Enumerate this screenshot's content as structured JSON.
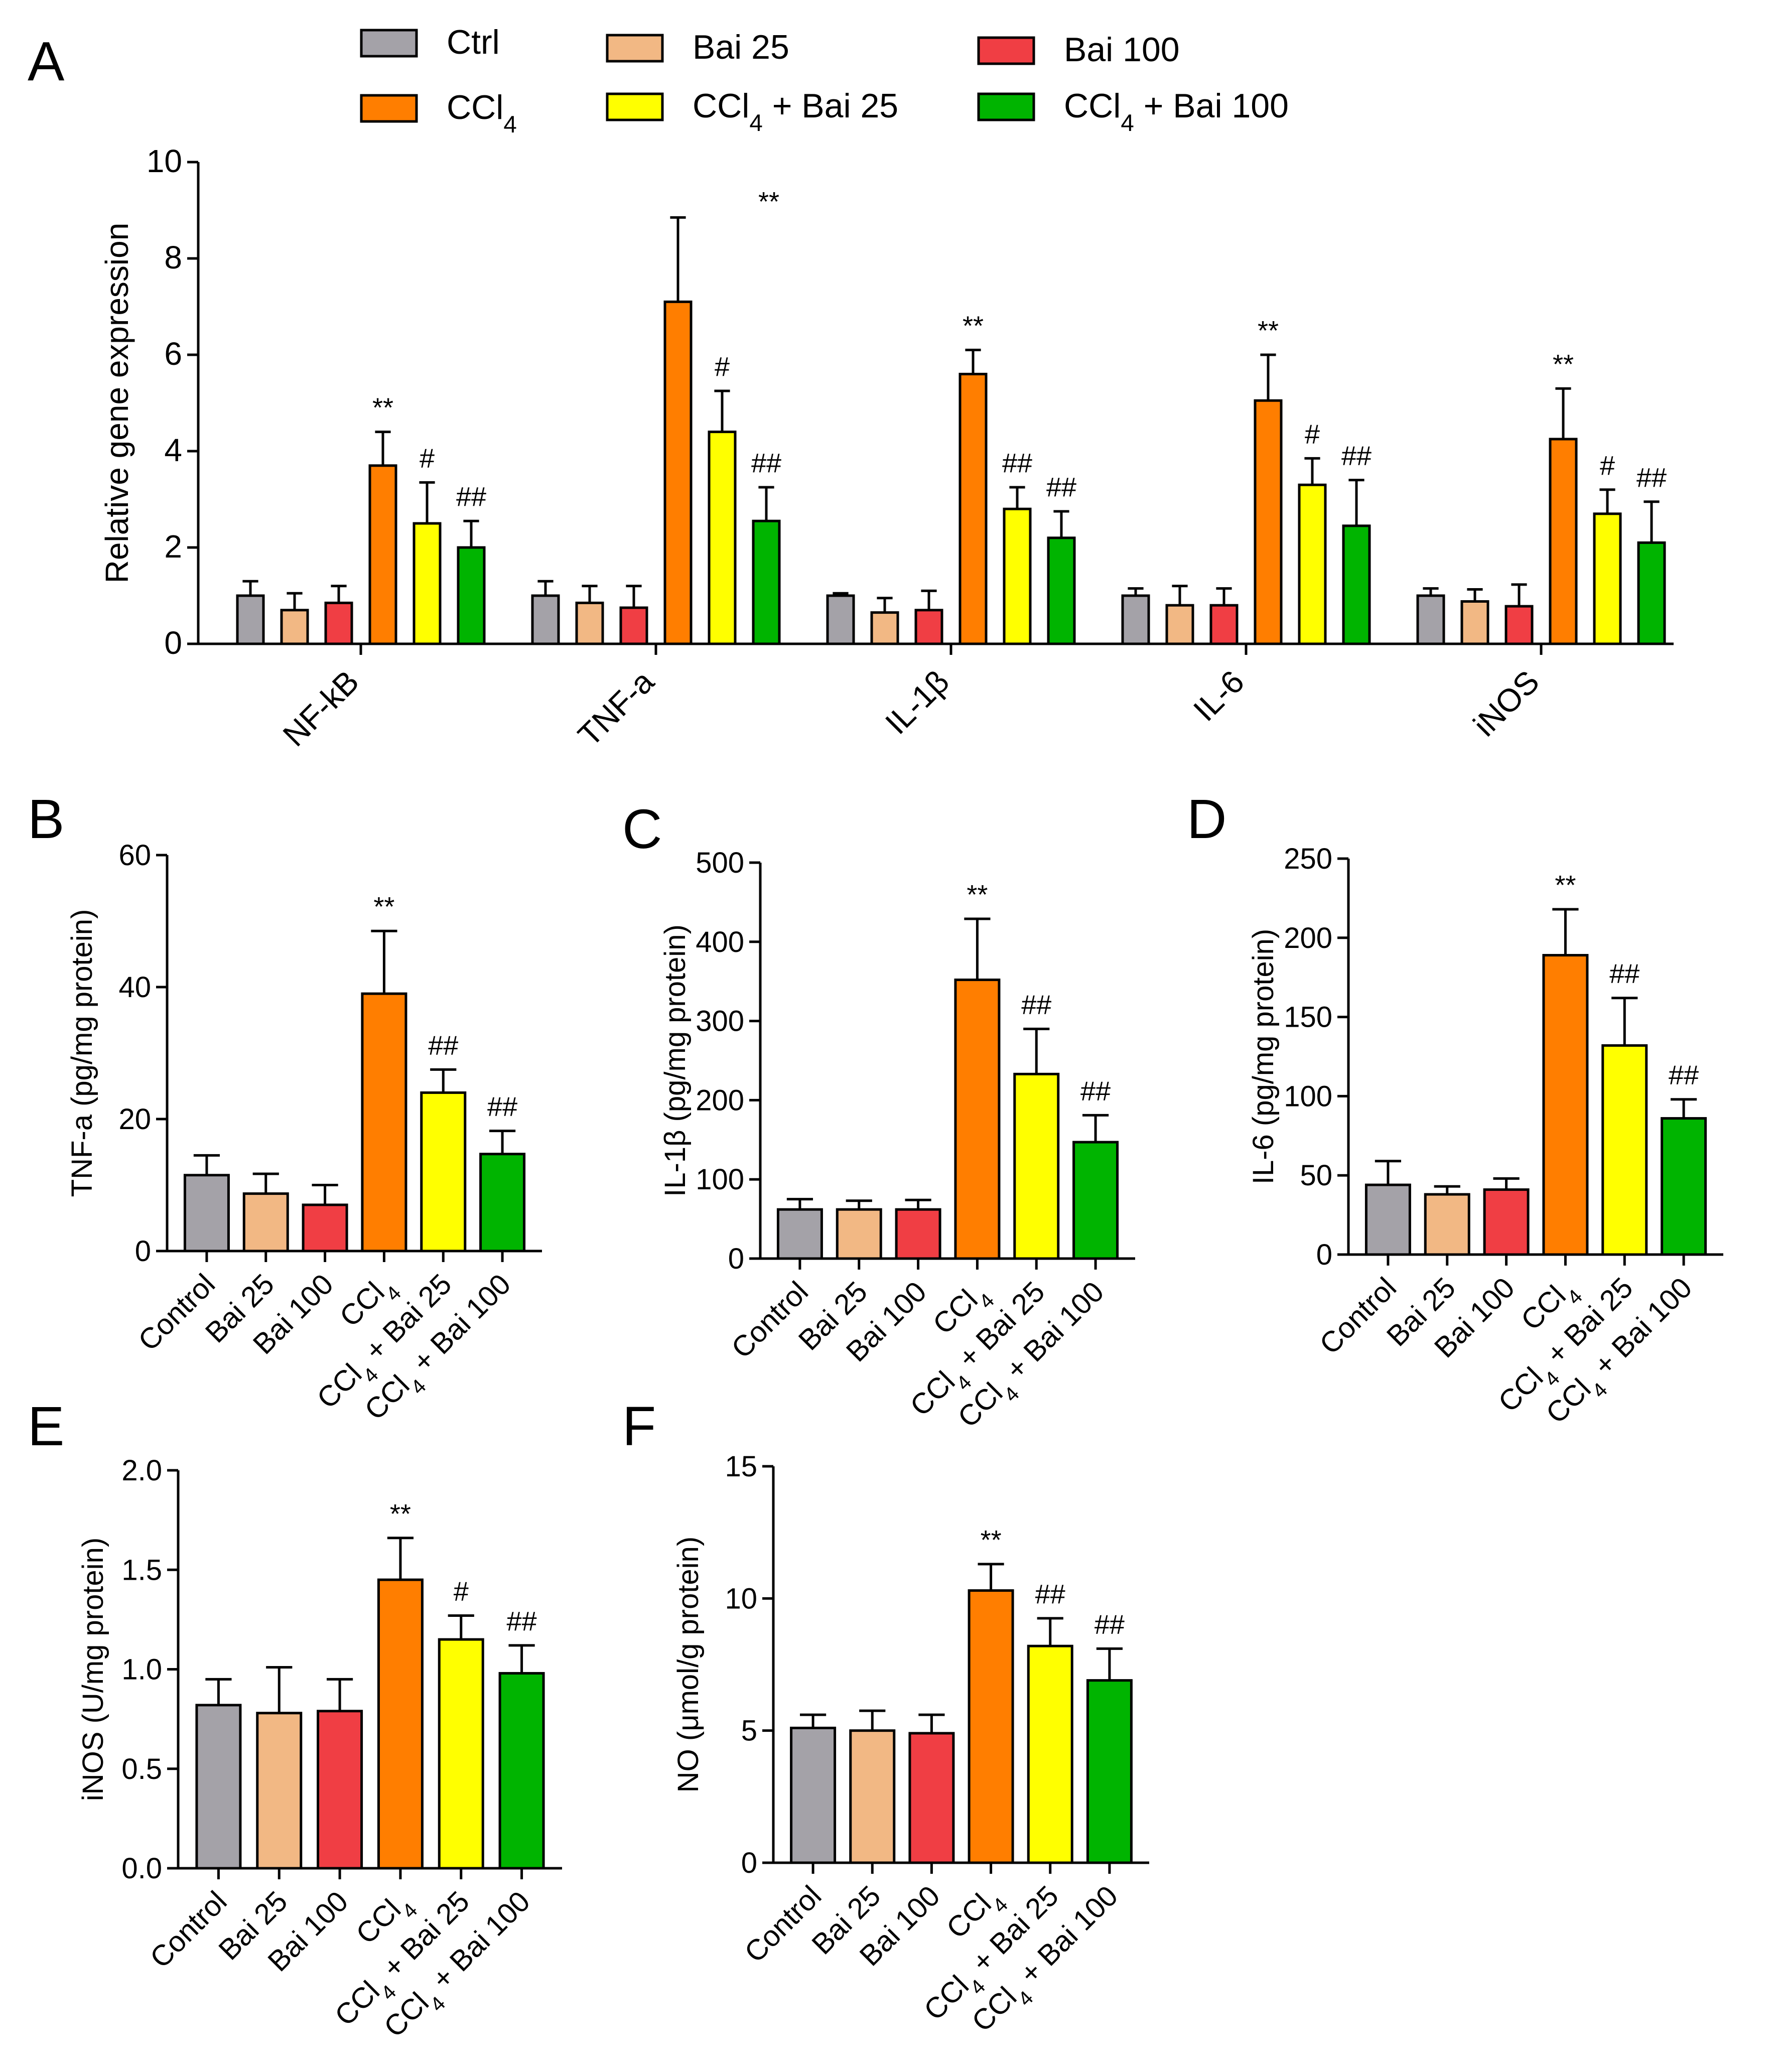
{
  "legend": [
    {
      "key": "ctrl",
      "label": "Ctrl",
      "sub": "",
      "tail": "",
      "color": "#A4A2A8"
    },
    {
      "key": "bai25",
      "label": "Bai 25",
      "sub": "",
      "tail": "",
      "color": "#F2B884"
    },
    {
      "key": "bai100",
      "label": "Bai 100",
      "sub": "",
      "tail": "",
      "color": "#F03E44"
    },
    {
      "key": "ccl4",
      "label": "CCl",
      "sub": "4",
      "tail": "",
      "color": "#FF7E00"
    },
    {
      "key": "ccl4bai25",
      "label": "CCl",
      "sub": "4",
      "tail": " + Bai 25",
      "color": "#FFFF00"
    },
    {
      "key": "ccl4bai100",
      "label": "CCl",
      "sub": "4",
      "tail": " + Bai 100",
      "color": "#00B400"
    }
  ],
  "chart_data": [
    {
      "id": "A",
      "panel_label": "A",
      "type": "bar",
      "ylabel": "Relative gene expression",
      "ylim": [
        0,
        10
      ],
      "yticks": [
        0,
        2,
        4,
        6,
        8,
        10
      ],
      "tick_decimals": 0,
      "categories": [
        "NF-kB",
        "TNF-a",
        "IL-1β",
        "IL-6",
        "iNOS"
      ],
      "series": [
        {
          "name": "Ctrl",
          "color": "#A4A2A8",
          "values": [
            1.0,
            1.0,
            1.0,
            1.0,
            1.0
          ],
          "errors": [
            0.3,
            0.3,
            0.05,
            0.15,
            0.15
          ],
          "sig": [
            "",
            "",
            "",
            "",
            ""
          ]
        },
        {
          "name": "Bai 25",
          "color": "#F2B884",
          "values": [
            0.7,
            0.85,
            0.65,
            0.8,
            0.88
          ],
          "errors": [
            0.35,
            0.35,
            0.3,
            0.4,
            0.25
          ],
          "sig": [
            "",
            "",
            "",
            "",
            ""
          ]
        },
        {
          "name": "Bai 100",
          "color": "#F03E44",
          "values": [
            0.85,
            0.75,
            0.7,
            0.8,
            0.78
          ],
          "errors": [
            0.35,
            0.45,
            0.4,
            0.35,
            0.45
          ],
          "sig": [
            "",
            "",
            "",
            "",
            ""
          ]
        },
        {
          "name": "CCl4",
          "color": "#FF7E00",
          "values": [
            3.7,
            7.1,
            5.6,
            5.05,
            4.25
          ],
          "errors": [
            0.7,
            1.75,
            0.5,
            0.95,
            1.05
          ],
          "sig": [
            "**",
            "",
            "**",
            "**",
            "**"
          ]
        },
        {
          "name": "CCl4 + Bai 25",
          "color": "#FFFF00",
          "values": [
            2.5,
            4.4,
            2.8,
            3.3,
            2.7
          ],
          "errors": [
            0.85,
            0.85,
            0.45,
            0.55,
            0.5
          ],
          "sig": [
            "#",
            "#",
            "##",
            "#",
            "#"
          ]
        },
        {
          "name": "CCl4 + Bai 100",
          "color": "#00B400",
          "values": [
            2.0,
            2.55,
            2.2,
            2.45,
            2.1
          ],
          "errors": [
            0.55,
            0.7,
            0.55,
            0.95,
            0.85
          ],
          "sig": [
            "##",
            "##",
            "##",
            "##",
            "##"
          ]
        }
      ],
      "annotations": [
        {
          "text": "**",
          "near_category": "TNF-a"
        }
      ]
    },
    {
      "id": "B",
      "panel_label": "B",
      "type": "bar",
      "ylabel": "TNF-a (pg/mg protein)",
      "ylim": [
        0,
        60
      ],
      "yticks": [
        0,
        20,
        40,
        60
      ],
      "tick_decimals": 0,
      "categories": [
        "Control",
        "Bai 25",
        "Bai 100",
        "CCl4",
        "CCl4 + Bai 25",
        "CCl4 + Bai 100"
      ],
      "values": [
        11.5,
        8.7,
        7.0,
        39.0,
        24.0,
        14.7
      ],
      "errors": [
        3.0,
        3.0,
        3.0,
        9.5,
        3.5,
        3.5
      ],
      "sig": [
        "",
        "",
        "",
        "**",
        "##",
        "##"
      ]
    },
    {
      "id": "C",
      "panel_label": "C",
      "type": "bar",
      "ylabel": "IL-1β (pg/mg protein)",
      "ylim": [
        0,
        500
      ],
      "yticks": [
        0,
        100,
        200,
        300,
        400,
        500
      ],
      "tick_decimals": 0,
      "categories": [
        "Control",
        "Bai 25",
        "Bai 100",
        "CCl4",
        "CCl4 + Bai 25",
        "CCl4 + Bai 100"
      ],
      "values": [
        62,
        62,
        62,
        352,
        233,
        147
      ],
      "errors": [
        13,
        11,
        12,
        77,
        57,
        34
      ],
      "sig": [
        "",
        "",
        "",
        "**",
        "##",
        "##"
      ]
    },
    {
      "id": "D",
      "panel_label": "D",
      "type": "bar",
      "ylabel": "IL-6 (pg/mg protein)",
      "ylim": [
        0,
        250
      ],
      "yticks": [
        0,
        50,
        100,
        150,
        200,
        250
      ],
      "tick_decimals": 0,
      "categories": [
        "Control",
        "Bai 25",
        "Bai 100",
        "CCl4",
        "CCl4 + Bai 25",
        "CCl4 + Bai 100"
      ],
      "values": [
        44,
        38,
        41,
        189,
        132,
        86
      ],
      "errors": [
        15,
        5,
        7,
        29,
        30,
        12
      ],
      "sig": [
        "",
        "",
        "",
        "**",
        "##",
        "##"
      ]
    },
    {
      "id": "E",
      "panel_label": "E",
      "type": "bar",
      "ylabel": "iNOS (U/mg protein)",
      "ylim": [
        0,
        2.0
      ],
      "yticks": [
        0,
        0.5,
        1.0,
        1.5,
        2.0
      ],
      "tick_decimals": 1,
      "categories": [
        "Control",
        "Bai 25",
        "Bai 100",
        "CCl4",
        "CCl4 + Bai 25",
        "CCl4 + Bai 100"
      ],
      "values": [
        0.82,
        0.78,
        0.79,
        1.45,
        1.15,
        0.98
      ],
      "errors": [
        0.13,
        0.23,
        0.16,
        0.21,
        0.12,
        0.14
      ],
      "sig": [
        "",
        "",
        "",
        "**",
        "#",
        "##"
      ]
    },
    {
      "id": "F",
      "panel_label": "F",
      "type": "bar",
      "ylabel": "NO (μmol/g protein)",
      "ylim": [
        0,
        15
      ],
      "yticks": [
        0,
        5,
        10,
        15
      ],
      "tick_decimals": 0,
      "categories": [
        "Control",
        "Bai 25",
        "Bai 100",
        "CCl4",
        "CCl4 + Bai 25",
        "CCl4 + Bai 100"
      ],
      "values": [
        5.1,
        5.0,
        4.9,
        10.3,
        8.2,
        6.9
      ],
      "errors": [
        0.5,
        0.75,
        0.7,
        1.0,
        1.05,
        1.2
      ],
      "sig": [
        "",
        "",
        "",
        "**",
        "##",
        "##"
      ]
    }
  ]
}
